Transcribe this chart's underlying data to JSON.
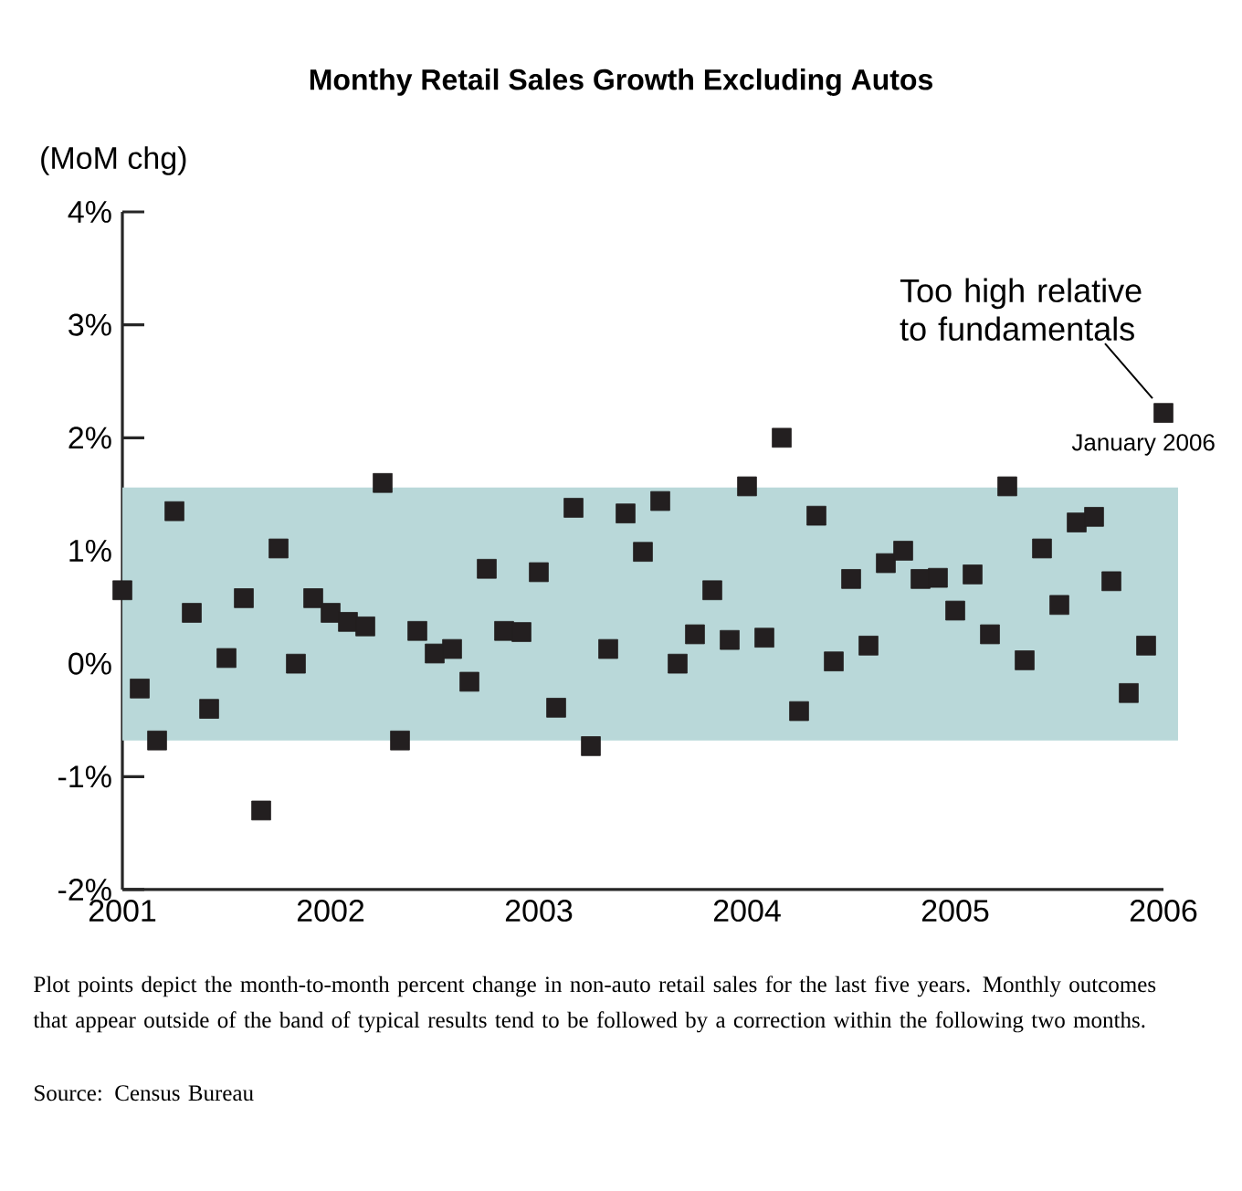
{
  "chart_data": {
    "type": "scatter",
    "title": "Monthy Retail Sales Growth Excluding Autos",
    "ylabel": "(MoM chg)",
    "x": [
      "2001-01",
      "2001-02",
      "2001-03",
      "2001-04",
      "2001-05",
      "2001-06",
      "2001-07",
      "2001-08",
      "2001-09",
      "2001-10",
      "2001-11",
      "2001-12",
      "2002-01",
      "2002-02",
      "2002-03",
      "2002-04",
      "2002-05",
      "2002-06",
      "2002-07",
      "2002-08",
      "2002-09",
      "2002-10",
      "2002-11",
      "2002-12",
      "2003-01",
      "2003-02",
      "2003-03",
      "2003-04",
      "2003-05",
      "2003-06",
      "2003-07",
      "2003-08",
      "2003-09",
      "2003-10",
      "2003-11",
      "2003-12",
      "2004-01",
      "2004-02",
      "2004-03",
      "2004-04",
      "2004-05",
      "2004-06",
      "2004-07",
      "2004-08",
      "2004-09",
      "2004-10",
      "2004-11",
      "2004-12",
      "2005-01",
      "2005-02",
      "2005-03",
      "2005-04",
      "2005-05",
      "2005-06",
      "2005-07",
      "2005-08",
      "2005-09",
      "2005-10",
      "2005-11",
      "2005-12",
      "2006-01"
    ],
    "series": [
      {
        "color": "#231f20",
        "values": [
          0.65,
          -0.22,
          -0.68,
          1.35,
          0.45,
          -0.4,
          0.05,
          0.58,
          -1.3,
          1.02,
          0.0,
          0.58,
          0.45,
          0.37,
          0.33,
          1.6,
          -0.68,
          0.29,
          0.09,
          0.13,
          -0.16,
          0.84,
          0.29,
          0.28,
          0.81,
          -0.39,
          1.38,
          -0.73,
          0.13,
          1.33,
          0.99,
          1.44,
          0.0,
          0.26,
          0.65,
          0.21,
          1.57,
          0.23,
          2.0,
          -0.42,
          1.31,
          0.02,
          0.75,
          0.16,
          0.89,
          1.0,
          0.75,
          0.76,
          0.47,
          0.79,
          0.26,
          1.57,
          0.03,
          1.02,
          0.52,
          1.25,
          1.3,
          0.73,
          -0.26,
          0.16,
          2.22
        ]
      }
    ],
    "marker": "square",
    "xlim": [
      "2001-01",
      "2006-01"
    ],
    "xticks": [
      "2001",
      "2002",
      "2003",
      "2004",
      "2005",
      "2006"
    ],
    "ylim": [
      -2,
      4
    ],
    "yticks": [
      {
        "value": -2,
        "label": "-2%"
      },
      {
        "value": -1,
        "label": "-1%"
      },
      {
        "value": 0,
        "label": "0%"
      },
      {
        "value": 1,
        "label": "1%"
      },
      {
        "value": 2,
        "label": "2%"
      },
      {
        "value": 3,
        "label": "3%"
      },
      {
        "value": 4,
        "label": "4%"
      }
    ],
    "bands": [
      {
        "axis": "y",
        "from": -0.68,
        "to": 1.56,
        "color": "#b9d8d9"
      }
    ],
    "annotations": [
      {
        "text": "Too high relative to fundamentals",
        "x": "2006-01",
        "y": 2.22
      },
      {
        "text": "January 2006",
        "x": "2006-01",
        "y": 2.22
      },
      "Plot points depict the month-to-month percent change in non-auto retail sales for the last five years. Monthly outcomes that appear outside of the band of typical results tend to be followed by a correction within the following two months.",
      "Source: Census Bureau"
    ]
  }
}
